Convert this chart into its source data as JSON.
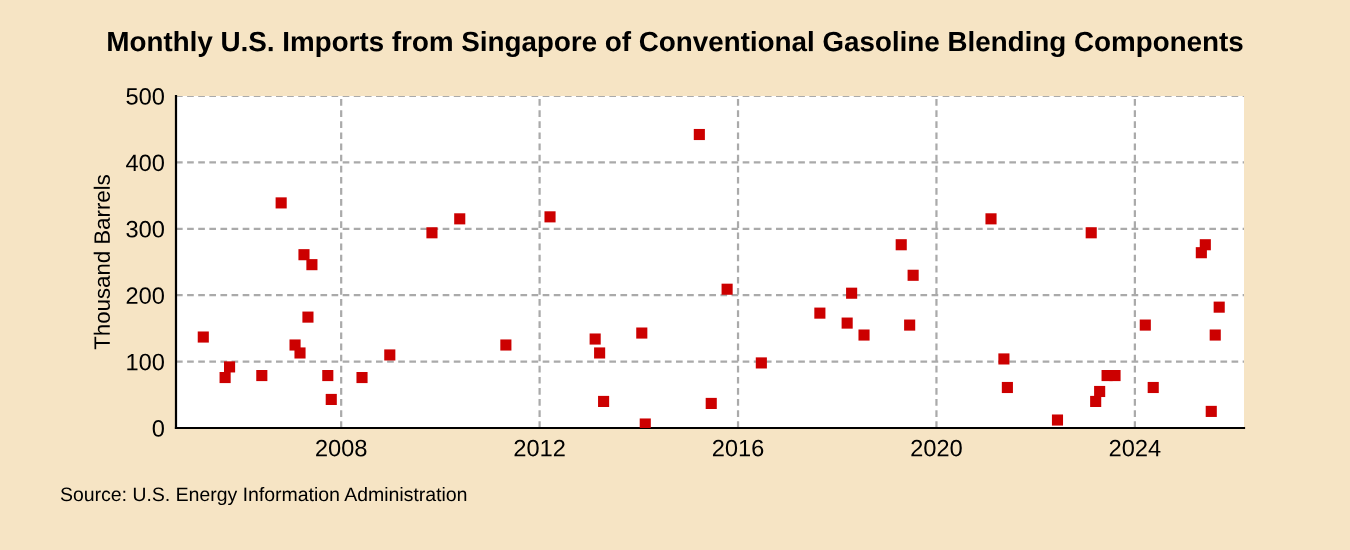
{
  "chart_data": {
    "type": "scatter",
    "title": "Monthly U.S. Imports from Singapore of Conventional Gasoline Blending Components",
    "ylabel": "Thousand Barrels",
    "x": [
      2005.22,
      2005.66,
      2005.75,
      2006.4,
      2006.79,
      2007.07,
      2007.17,
      2007.25,
      2007.41,
      2007.33,
      2007.73,
      2007.8,
      2008.42,
      2008.98,
      2009.83,
      2010.39,
      2011.32,
      2012.21,
      2013.12,
      2013.21,
      2013.29,
      2014.06,
      2014.13,
      2015.22,
      2015.46,
      2015.78,
      2016.47,
      2017.65,
      2018.2,
      2018.29,
      2018.54,
      2019.29,
      2019.46,
      2019.53,
      2021.1,
      2021.36,
      2021.43,
      2022.44,
      2023.12,
      2023.21,
      2023.29,
      2023.44,
      2023.6,
      2024.21,
      2024.37,
      2025.34,
      2025.42,
      2025.54,
      2025.62,
      2025.7
    ],
    "values": [
      137,
      76,
      92,
      79,
      339,
      125,
      113,
      261,
      246,
      167,
      79,
      43,
      76,
      110,
      294,
      315,
      125,
      318,
      134,
      113,
      40,
      143,
      6,
      442,
      37,
      209,
      98,
      173,
      158,
      203,
      140,
      276,
      155,
      230,
      315,
      104,
      61,
      12,
      294,
      40,
      55,
      79,
      79,
      155,
      61,
      264,
      276,
      25,
      140,
      182
    ],
    "color": "#cc0000",
    "marker": "square",
    "xlim": [
      2004.67,
      2026.2
    ],
    "xticks": [
      2008,
      2012,
      2016,
      2020,
      2024
    ],
    "ylim": [
      0,
      500
    ],
    "yticks": [
      0,
      100,
      200,
      300,
      400,
      500
    ],
    "grid": true,
    "annotations": [
      "Source: U.S. Energy Information Administration"
    ]
  }
}
